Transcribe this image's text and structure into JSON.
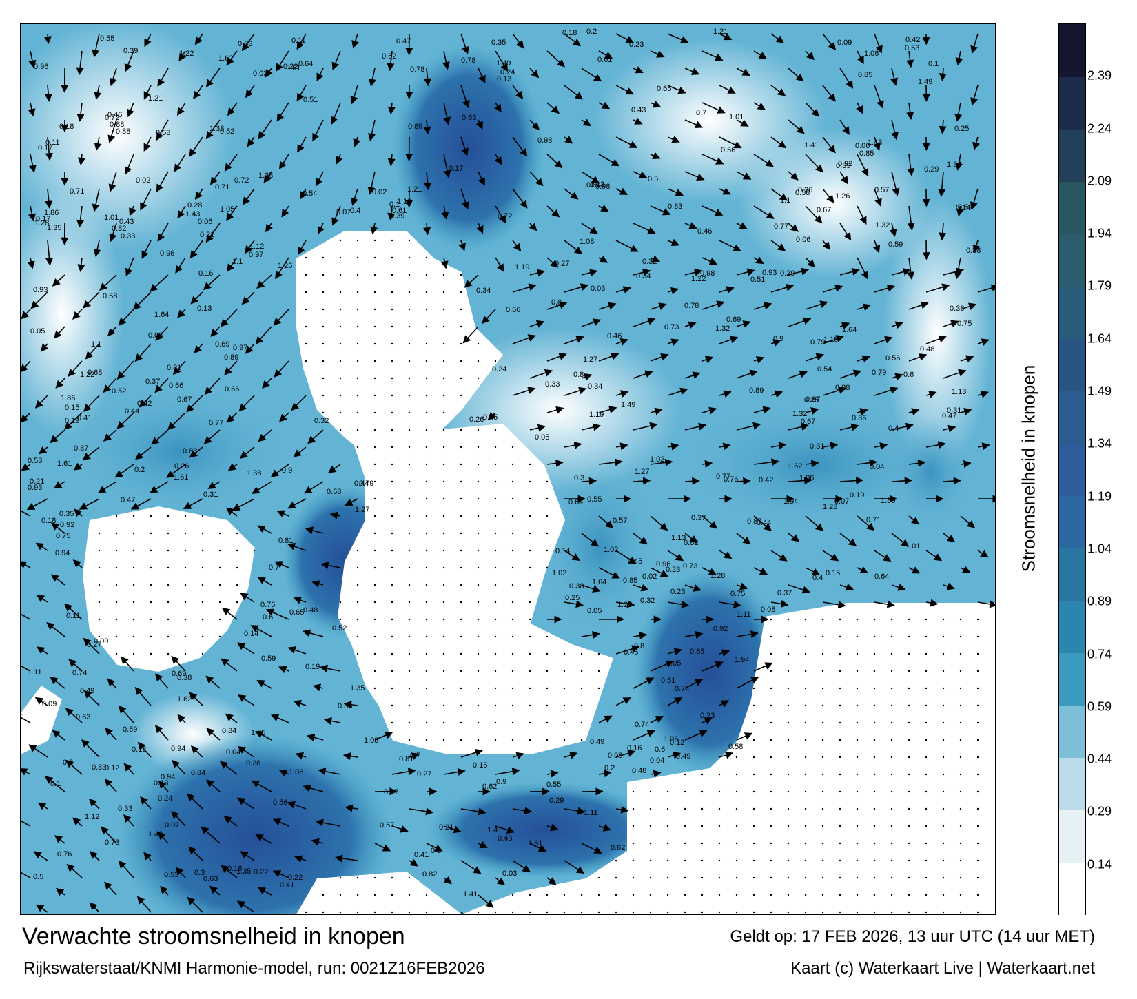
{
  "title": "Verwachte stroomsnelheid in knopen",
  "model_run": "Rijkswaterstaat/KNMI Harmonie-model, run: 0021Z16FEB2026",
  "valid_time": "Geldt op: 17 FEB 2026, 13 uur UTC (14 uur MET)",
  "credit": "Kaart (c) Waterkaart Live | Waterkaart.net",
  "legend": {
    "title": "Stroomsnelheid in knopen",
    "ticks": [
      "0.14",
      "0.29",
      "0.44",
      "0.59",
      "0.74",
      "0.89",
      "1.04",
      "1.19",
      "1.34",
      "1.49",
      "1.64",
      "1.79",
      "1.94",
      "2.09",
      "2.24",
      "2.39"
    ],
    "tick_values": [
      0.14,
      0.29,
      0.44,
      0.59,
      0.74,
      0.89,
      1.04,
      1.19,
      1.34,
      1.49,
      1.64,
      1.79,
      1.94,
      2.09,
      2.24,
      2.39
    ],
    "range": [
      0,
      2.54
    ],
    "colors": [
      "#ffffff",
      "#e6f1f6",
      "#bcdbe8",
      "#7dbfd6",
      "#3a9bbf",
      "#2a86ae",
      "#2b76a3",
      "#2b69a0",
      "#2c5e9c",
      "#2b5c92",
      "#2a5483",
      "#295e7a",
      "#2c5c6e",
      "#2a5662",
      "#22405a",
      "#1c2c4b",
      "#14162f"
    ]
  },
  "colors": {
    "land": "#ffffff",
    "sea_light": "#d8ecf4",
    "sea_mid": "#3f9bc2",
    "sea_deep": "#2a5fa5",
    "arrow": "#000000"
  },
  "map_labels": [
    {
      "text": "0.16",
      "v": 0.16
    },
    {
      "text": "0.33",
      "v": 0.33
    },
    {
      "text": "0.34",
      "v": 0.34
    },
    {
      "text": "0.29",
      "v": 0.29
    },
    {
      "text": "0.28",
      "v": 0.28
    },
    {
      "text": "0.22",
      "v": 0.22
    },
    {
      "text": "0.25",
      "v": 0.25
    },
    {
      "text": "0.57",
      "v": 0.57
    },
    {
      "text": "0.45",
      "v": 0.45
    },
    {
      "text": "0.73",
      "v": 0.73
    },
    {
      "text": "0.93",
      "v": 0.93
    },
    {
      "text": "0.87",
      "v": 0.87
    },
    {
      "text": "0.35",
      "v": 0.35
    },
    {
      "text": "0.42",
      "v": 0.42
    },
    {
      "text": "0.55",
      "v": 0.55
    },
    {
      "text": "0.49",
      "v": 0.49
    },
    {
      "text": "0.52",
      "v": 0.52
    },
    {
      "text": "0.58",
      "v": 0.58
    },
    {
      "text": "0.47",
      "v": 0.47
    },
    {
      "text": "0.41",
      "v": 0.41
    },
    {
      "text": "0.38",
      "v": 0.38
    },
    {
      "text": "0.68",
      "v": 0.68
    },
    {
      "text": "0.78",
      "v": 0.78
    },
    {
      "text": "0.65",
      "v": 0.65
    },
    {
      "text": "0.63",
      "v": 0.63
    },
    {
      "text": "0.71",
      "v": 0.71
    },
    {
      "text": "0.67",
      "v": 0.67
    },
    {
      "text": "1.22",
      "v": 1.22
    },
    {
      "text": "1.12",
      "v": 1.12
    },
    {
      "text": "1.28",
      "v": 1.28
    },
    {
      "text": "1.26",
      "v": 1.26
    },
    {
      "text": "0.76",
      "v": 0.76
    },
    {
      "text": "0.88",
      "v": 0.88
    },
    {
      "text": "0.92",
      "v": 0.92
    },
    {
      "text": "1.13",
      "v": 1.13
    },
    {
      "text": "1.49",
      "v": 1.49
    },
    {
      "text": "1.38",
      "v": 1.38
    },
    {
      "text": "1.62",
      "v": 1.62
    },
    {
      "text": "1.61",
      "v": 1.61
    },
    {
      "text": "1.94",
      "v": 1.94
    },
    {
      "text": "1.43",
      "v": 1.43
    },
    {
      "text": "1.05",
      "v": 1.05
    },
    {
      "text": "0.81",
      "v": 0.81
    },
    {
      "text": "0.66",
      "v": 0.66
    },
    {
      "text": "0.37",
      "v": 0.37
    },
    {
      "text": "0.12",
      "v": 0.12
    },
    {
      "text": "0.07",
      "v": 0.07
    },
    {
      "text": "0.05",
      "v": 0.05
    },
    {
      "text": "0.18",
      "v": 0.18
    },
    {
      "text": "0.21",
      "v": 0.21
    },
    {
      "text": "0.24",
      "v": 0.24
    },
    {
      "text": "0.26",
      "v": 0.26
    },
    {
      "text": "0.31",
      "v": 0.31
    },
    {
      "text": "0.39",
      "v": 0.39
    },
    {
      "text": "0.44",
      "v": 0.44
    },
    {
      "text": "0.51",
      "v": 0.51
    },
    {
      "text": "0.54",
      "v": 0.54
    },
    {
      "text": "0.56",
      "v": 0.56
    },
    {
      "text": "0.62",
      "v": 0.62
    },
    {
      "text": "0.72",
      "v": 0.72
    },
    {
      "text": "0.75",
      "v": 0.75
    },
    {
      "text": "0.83",
      "v": 0.83
    },
    {
      "text": "0.96",
      "v": 0.96
    },
    {
      "text": "1.02",
      "v": 1.02
    },
    {
      "text": "1.1",
      "v": 1.1
    },
    {
      "text": "1.27",
      "v": 1.27
    },
    {
      "text": "1.32",
      "v": 1.32
    },
    {
      "text": "0.09",
      "v": 0.09
    },
    {
      "text": "0.11",
      "v": 0.11
    },
    {
      "text": "0.14",
      "v": 0.14
    },
    {
      "text": "0.17",
      "v": 0.17
    },
    {
      "text": "0.19",
      "v": 0.19
    },
    {
      "text": "0.23",
      "v": 0.23
    },
    {
      "text": "0.27",
      "v": 0.27
    },
    {
      "text": "0.3",
      "v": 0.3
    },
    {
      "text": "0.36",
      "v": 0.36
    },
    {
      "text": "0.4",
      "v": 0.4
    },
    {
      "text": "0.43",
      "v": 0.43
    },
    {
      "text": "0.48",
      "v": 0.48
    },
    {
      "text": "0.53",
      "v": 0.53
    },
    {
      "text": "0.59",
      "v": 0.59
    },
    {
      "text": "0.61",
      "v": 0.61
    },
    {
      "text": "0.64",
      "v": 0.64
    },
    {
      "text": "0.7",
      "v": 0.7
    },
    {
      "text": "0.79",
      "v": 0.79
    },
    {
      "text": "0.82",
      "v": 0.82
    },
    {
      "text": "0.85",
      "v": 0.85
    },
    {
      "text": "0.9",
      "v": 0.9
    },
    {
      "text": "0.98",
      "v": 0.98
    },
    {
      "text": "1.08",
      "v": 1.08
    },
    {
      "text": "1.19",
      "v": 1.19
    },
    {
      "text": "0.02",
      "v": 0.02
    },
    {
      "text": "0.03",
      "v": 0.03
    },
    {
      "text": "0.04",
      "v": 0.04
    },
    {
      "text": "0.06",
      "v": 0.06
    },
    {
      "text": "0.08",
      "v": 0.08
    },
    {
      "text": "0.1",
      "v": 0.1
    },
    {
      "text": "0.13",
      "v": 0.13
    },
    {
      "text": "0.15",
      "v": 0.15
    },
    {
      "text": "0.2",
      "v": 0.2
    },
    {
      "text": "0.32",
      "v": 0.32
    },
    {
      "text": "0.46",
      "v": 0.46
    },
    {
      "text": "0.5",
      "v": 0.5
    },
    {
      "text": "0.6",
      "v": 0.6
    },
    {
      "text": "0.69",
      "v": 0.69
    },
    {
      "text": "0.74",
      "v": 0.74
    },
    {
      "text": "0.77",
      "v": 0.77
    },
    {
      "text": "0.8",
      "v": 0.8
    },
    {
      "text": "0.84",
      "v": 0.84
    },
    {
      "text": "0.89",
      "v": 0.89
    },
    {
      "text": "0.94",
      "v": 0.94
    },
    {
      "text": "0.97",
      "v": 0.97
    },
    {
      "text": "1.01",
      "v": 1.01
    },
    {
      "text": "1.06",
      "v": 1.06
    },
    {
      "text": "1.11",
      "v": 1.11
    },
    {
      "text": "1.21",
      "v": 1.21
    },
    {
      "text": "1.35",
      "v": 1.35
    },
    {
      "text": "1.41",
      "v": 1.41
    },
    {
      "text": "1.64",
      "v": 1.64
    },
    {
      "text": "1.86",
      "v": 1.86
    }
  ]
}
